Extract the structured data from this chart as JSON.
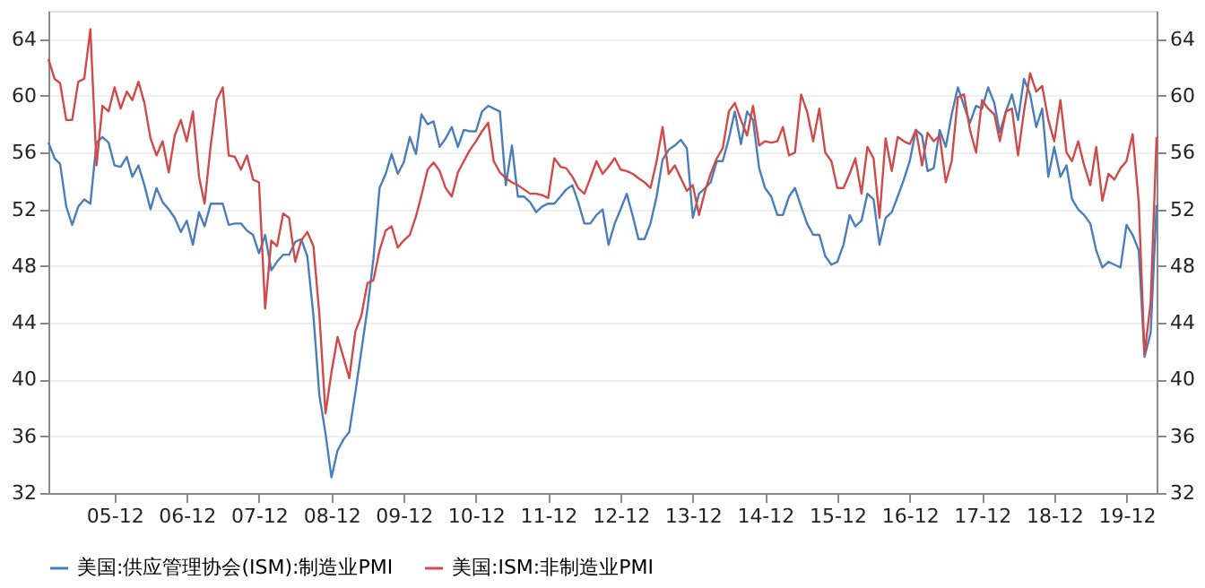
{
  "chart_data": {
    "type": "line",
    "x": [
      "2005-01",
      "2005-02",
      "2005-03",
      "2005-04",
      "2005-05",
      "2005-06",
      "2005-07",
      "2005-08",
      "2005-09",
      "2005-10",
      "2005-11",
      "2005-12",
      "2006-01",
      "2006-02",
      "2006-03",
      "2006-04",
      "2006-05",
      "2006-06",
      "2006-07",
      "2006-08",
      "2006-09",
      "2006-10",
      "2006-11",
      "2006-12",
      "2007-01",
      "2007-02",
      "2007-03",
      "2007-04",
      "2007-05",
      "2007-06",
      "2007-07",
      "2007-08",
      "2007-09",
      "2007-10",
      "2007-11",
      "2007-12",
      "2008-01",
      "2008-02",
      "2008-03",
      "2008-04",
      "2008-05",
      "2008-06",
      "2008-07",
      "2008-08",
      "2008-09",
      "2008-10",
      "2008-11",
      "2008-12",
      "2009-01",
      "2009-02",
      "2009-03",
      "2009-04",
      "2009-05",
      "2009-06",
      "2009-07",
      "2009-08",
      "2009-09",
      "2009-10",
      "2009-11",
      "2009-12",
      "2010-01",
      "2010-02",
      "2010-03",
      "2010-04",
      "2010-05",
      "2010-06",
      "2010-07",
      "2010-08",
      "2010-09",
      "2010-10",
      "2010-11",
      "2010-12",
      "2011-01",
      "2011-02",
      "2011-03",
      "2011-04",
      "2011-05",
      "2011-06",
      "2011-07",
      "2011-08",
      "2011-09",
      "2011-10",
      "2011-11",
      "2011-12",
      "2012-01",
      "2012-02",
      "2012-03",
      "2012-04",
      "2012-05",
      "2012-06",
      "2012-07",
      "2012-08",
      "2012-09",
      "2012-10",
      "2012-11",
      "2012-12",
      "2013-01",
      "2013-02",
      "2013-03",
      "2013-04",
      "2013-05",
      "2013-06",
      "2013-07",
      "2013-08",
      "2013-09",
      "2013-10",
      "2013-11",
      "2013-12",
      "2014-01",
      "2014-02",
      "2014-03",
      "2014-04",
      "2014-05",
      "2014-06",
      "2014-07",
      "2014-08",
      "2014-09",
      "2014-10",
      "2014-11",
      "2014-12",
      "2015-01",
      "2015-02",
      "2015-03",
      "2015-04",
      "2015-05",
      "2015-06",
      "2015-07",
      "2015-08",
      "2015-09",
      "2015-10",
      "2015-11",
      "2015-12",
      "2016-01",
      "2016-02",
      "2016-03",
      "2016-04",
      "2016-05",
      "2016-06",
      "2016-07",
      "2016-08",
      "2016-09",
      "2016-10",
      "2016-11",
      "2016-12",
      "2017-01",
      "2017-02",
      "2017-03",
      "2017-04",
      "2017-05",
      "2017-06",
      "2017-07",
      "2017-08",
      "2017-09",
      "2017-10",
      "2017-11",
      "2017-12",
      "2018-01",
      "2018-02",
      "2018-03",
      "2018-04",
      "2018-05",
      "2018-06",
      "2018-07",
      "2018-08",
      "2018-09",
      "2018-10",
      "2018-11",
      "2018-12",
      "2019-01",
      "2019-02",
      "2019-03",
      "2019-04",
      "2019-05",
      "2019-06",
      "2019-07",
      "2019-08",
      "2019-09",
      "2019-10",
      "2019-11",
      "2019-12",
      "2020-01",
      "2020-02",
      "2020-03",
      "2020-04",
      "2020-05"
    ],
    "series": [
      {
        "name": "美国:供应管理协会(ISM):制造业PMI",
        "color": "#4a7ebb",
        "values": [
          56.7,
          55.6,
          55.2,
          52.2,
          50.9,
          52.2,
          52.7,
          52.4,
          56.7,
          57.1,
          56.7,
          55.1,
          55.0,
          55.7,
          54.3,
          55.1,
          53.7,
          52.0,
          53.5,
          52.5,
          52.0,
          51.4,
          50.4,
          51.2,
          49.5,
          51.8,
          50.8,
          52.4,
          52.4,
          52.4,
          50.9,
          51.0,
          51.0,
          50.5,
          50.2,
          48.9,
          50.2,
          47.7,
          48.3,
          48.8,
          48.8,
          49.7,
          49.9,
          48.7,
          44.5,
          38.9,
          36.2,
          33.1,
          35.0,
          35.8,
          36.3,
          39.1,
          42.0,
          45.0,
          48.5,
          53.5,
          54.5,
          55.9,
          54.5,
          55.3,
          57.1,
          55.9,
          58.7,
          58.0,
          58.2,
          56.4,
          57.0,
          57.8,
          56.4,
          57.6,
          57.5,
          57.5,
          58.9,
          59.3,
          59.1,
          58.9,
          53.7,
          56.5,
          52.9,
          52.9,
          52.5,
          51.8,
          52.2,
          52.4,
          52.4,
          52.9,
          53.4,
          53.7,
          52.5,
          51.0,
          51.0,
          51.6,
          52.0,
          49.5,
          51.0,
          52.0,
          53.1,
          51.5,
          49.9,
          49.9,
          51.0,
          52.9,
          55.5,
          56.2,
          56.5,
          56.9,
          56.3,
          51.4,
          53.1,
          53.5,
          53.9,
          55.4,
          55.4,
          57.0,
          58.9,
          56.6,
          58.9,
          58.3,
          54.9,
          53.5,
          52.9,
          51.6,
          51.6,
          52.9,
          53.5,
          52.2,
          51.0,
          50.2,
          50.2,
          48.7,
          48.1,
          48.3,
          49.5,
          51.6,
          50.8,
          51.2,
          53.1,
          52.7,
          49.5,
          51.4,
          51.8,
          52.9,
          54.1,
          55.4,
          57.6,
          57.2,
          54.7,
          54.9,
          57.6,
          56.4,
          58.7,
          60.6,
          59.3,
          58.1,
          59.3,
          59.1,
          60.6,
          59.5,
          57.4,
          58.9,
          60.1,
          58.3,
          61.2,
          60.1,
          57.8,
          59.1,
          54.3,
          56.4,
          54.3,
          55.1,
          52.7,
          52.0,
          51.6,
          51.0,
          49.1,
          47.9,
          48.3,
          48.1,
          47.9,
          50.9,
          50.2,
          49.1,
          41.6,
          43.3,
          52.3
        ]
      },
      {
        "name": "美国:ISM:非制造业PMI",
        "color": "#d04a4a",
        "values": [
          62.6,
          61.2,
          60.9,
          58.3,
          58.3,
          61.0,
          61.2,
          64.7,
          55.1,
          59.3,
          58.9,
          60.6,
          59.1,
          60.3,
          59.7,
          61.0,
          59.5,
          57.0,
          55.8,
          56.8,
          54.6,
          57.2,
          58.3,
          56.8,
          58.9,
          54.3,
          52.4,
          56.5,
          59.7,
          60.6,
          55.8,
          55.7,
          54.8,
          55.8,
          54.1,
          53.9,
          45.0,
          49.8,
          49.4,
          51.7,
          51.4,
          48.3,
          49.8,
          50.4,
          49.4,
          44.6,
          37.6,
          40.5,
          43.0,
          41.5,
          40.1,
          43.4,
          44.5,
          46.8,
          47.0,
          49.1,
          50.5,
          50.8,
          49.3,
          49.8,
          50.2,
          51.5,
          53.0,
          54.8,
          55.3,
          54.7,
          53.5,
          52.9,
          54.6,
          55.4,
          56.2,
          56.8,
          57.5,
          58.1,
          55.4,
          54.6,
          54.2,
          53.9,
          53.7,
          53.4,
          53.1,
          53.1,
          53.0,
          52.8,
          55.6,
          55.0,
          54.9,
          54.3,
          53.5,
          53.1,
          54.2,
          55.4,
          54.5,
          55.0,
          55.6,
          54.8,
          54.7,
          54.5,
          54.2,
          53.9,
          53.5,
          55.4,
          57.8,
          54.5,
          55.1,
          54.2,
          53.3,
          53.7,
          51.6,
          53.3,
          54.5,
          55.6,
          56.3,
          58.9,
          59.5,
          58.3,
          57.2,
          59.3,
          56.5,
          56.8,
          56.7,
          56.8,
          57.8,
          55.8,
          56.0,
          60.1,
          58.9,
          56.8,
          59.1,
          56.0,
          55.4,
          53.5,
          53.5,
          54.5,
          55.6,
          53.1,
          56.4,
          55.6,
          51.4,
          57.0,
          54.7,
          57.1,
          56.8,
          56.6,
          57.6,
          55.1,
          57.4,
          56.8,
          57.2,
          53.9,
          55.4,
          59.9,
          60.1,
          57.6,
          56.0,
          59.7,
          59.1,
          58.7,
          56.8,
          58.9,
          59.1,
          55.8,
          58.9,
          61.6,
          60.3,
          60.7,
          58.3,
          56.8,
          59.7,
          56.0,
          55.4,
          56.8,
          55.1,
          53.7,
          56.4,
          52.6,
          54.5,
          54.1,
          54.9,
          55.4,
          57.3,
          52.5,
          41.8,
          45.4,
          57.1
        ]
      }
    ],
    "xlim": [
      "2005-01",
      "2020-05"
    ],
    "xticks": [
      {
        "value": "2005-12",
        "label": "05-12"
      },
      {
        "value": "2006-12",
        "label": "06-12"
      },
      {
        "value": "2007-12",
        "label": "07-12"
      },
      {
        "value": "2008-12",
        "label": "08-12"
      },
      {
        "value": "2009-12",
        "label": "09-12"
      },
      {
        "value": "2010-12",
        "label": "10-12"
      },
      {
        "value": "2011-12",
        "label": "11-12"
      },
      {
        "value": "2012-12",
        "label": "12-12"
      },
      {
        "value": "2013-12",
        "label": "13-12"
      },
      {
        "value": "2014-12",
        "label": "14-12"
      },
      {
        "value": "2015-12",
        "label": "15-12"
      },
      {
        "value": "2016-12",
        "label": "16-12"
      },
      {
        "value": "2017-12",
        "label": "17-12"
      },
      {
        "value": "2018-12",
        "label": "18-12"
      },
      {
        "value": "2019-12",
        "label": "19-12"
      }
    ],
    "ylim": [
      32,
      66
    ],
    "yticks": [
      32,
      36,
      40,
      44,
      48,
      52,
      56,
      60,
      64
    ],
    "y2lim": [
      32,
      66
    ],
    "y2ticks": [
      32,
      36,
      40,
      44,
      48,
      52,
      56,
      60,
      64
    ],
    "grid": "y",
    "legend": "bottom",
    "line_style": "solid",
    "marker": "none"
  }
}
